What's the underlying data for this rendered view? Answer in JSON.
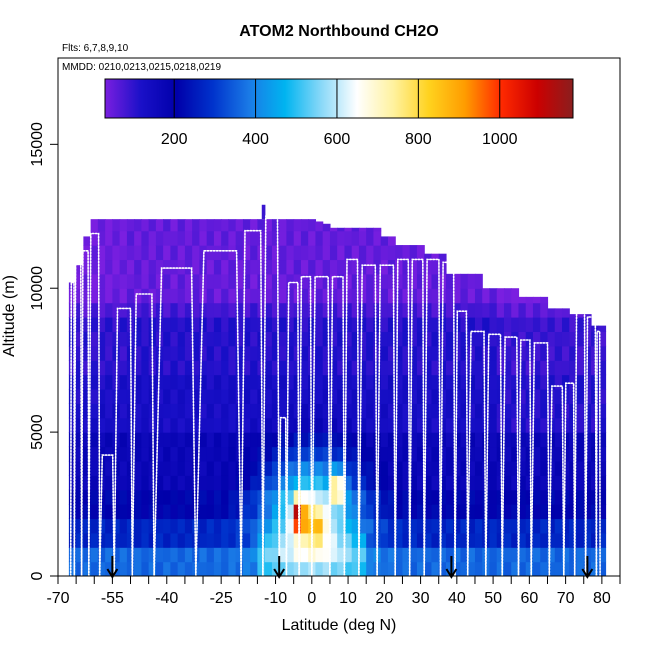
{
  "chart_data": {
    "type": "heatmap",
    "title": "ATOM2 Northbound CH2O",
    "subtitle_flights": "Flts: 6,7,8,9,10",
    "subtitle_dates": "MMDD: 0210,0213,0215,0218,0219",
    "xlabel": "Latitude (deg N)",
    "ylabel": "Altitude (m)",
    "xlim": [
      -70,
      85
    ],
    "ylim": [
      0,
      18000
    ],
    "x_ticks": [
      -70,
      -55,
      -40,
      -25,
      -10,
      0,
      10,
      20,
      30,
      40,
      50,
      60,
      70,
      80
    ],
    "x_minor_ticks": [
      -65,
      -60,
      -50,
      -45,
      -35,
      -30,
      -20,
      -15,
      -5,
      5,
      15,
      25,
      35,
      45,
      55,
      65,
      75,
      85
    ],
    "y_ticks": [
      0,
      5000,
      10000,
      15000
    ],
    "colorbar": {
      "min": 30,
      "max": 1180,
      "ticks": [
        200,
        400,
        600,
        800,
        1000
      ],
      "colors": [
        "#7a1fe0",
        "#1a10c8",
        "#0000aa",
        "#0033cc",
        "#1a7ae6",
        "#00b4f0",
        "#88d8f8",
        "#ffffff",
        "#fff2a0",
        "#ffd21e",
        "#ff9c00",
        "#ff2a00",
        "#cc0000",
        "#8b1e1e"
      ]
    },
    "arrows_lat": [
      -55,
      -9,
      38.5,
      76
    ],
    "flight_profiles": [
      {
        "lat0": -66.5,
        "lat1": -65.5,
        "top": 10200
      },
      {
        "lat0": -65.5,
        "lat1": -63.5,
        "top": 10900
      },
      {
        "lat0": -63.5,
        "lat1": -61.5,
        "top": 11300
      },
      {
        "lat0": -61.5,
        "lat1": -58.5,
        "top": 11900
      },
      {
        "lat0": -58.5,
        "lat1": -54.5,
        "top": 4200
      },
      {
        "lat0": -54.5,
        "lat1": -49.5,
        "top": 9300
      },
      {
        "lat0": -49.5,
        "lat1": -43.5,
        "top": 9800
      },
      {
        "lat0": -43.5,
        "lat1": -32.0,
        "top": 10700
      },
      {
        "lat0": -32.0,
        "lat1": -19.5,
        "top": 11300
      },
      {
        "lat0": -19.5,
        "lat1": -13.5,
        "top": 12000
      },
      {
        "lat0": -13.5,
        "lat1": -9.0,
        "top": 12500
      },
      {
        "lat0": -9.0,
        "lat1": -7.0,
        "top": 5500
      },
      {
        "lat0": -7.0,
        "lat1": -3.5,
        "top": 10200
      },
      {
        "lat0": -3.5,
        "lat1": 0.0,
        "top": 10400
      },
      {
        "lat0": 0.0,
        "lat1": 5.0,
        "top": 10400
      },
      {
        "lat0": 5.0,
        "lat1": 9.0,
        "top": 10400
      },
      {
        "lat0": 9.0,
        "lat1": 13.0,
        "top": 11000
      },
      {
        "lat0": 13.0,
        "lat1": 18.0,
        "top": 10800
      },
      {
        "lat0": 18.0,
        "lat1": 23.0,
        "top": 10800
      },
      {
        "lat0": 23.0,
        "lat1": 27.0,
        "top": 11000
      },
      {
        "lat0": 27.0,
        "lat1": 31.0,
        "top": 11000
      },
      {
        "lat0": 31.0,
        "lat1": 35.5,
        "top": 11000
      },
      {
        "lat0": 35.5,
        "lat1": 39.5,
        "top": 10900
      },
      {
        "lat0": 39.5,
        "lat1": 43.0,
        "top": 9200
      },
      {
        "lat0": 43.0,
        "lat1": 48.0,
        "top": 8500
      },
      {
        "lat0": 48.0,
        "lat1": 52.5,
        "top": 8400
      },
      {
        "lat0": 52.5,
        "lat1": 57.0,
        "top": 8300
      },
      {
        "lat0": 57.0,
        "lat1": 60.5,
        "top": 8200
      },
      {
        "lat0": 60.5,
        "lat1": 65.5,
        "top": 8100
      },
      {
        "lat0": 65.5,
        "lat1": 69.5,
        "top": 6600
      },
      {
        "lat0": 69.5,
        "lat1": 72.5,
        "top": 6700
      },
      {
        "lat0": 72.5,
        "lat1": 75.5,
        "top": 9300
      },
      {
        "lat0": 75.5,
        "lat1": 78.5,
        "top": 9000
      },
      {
        "lat0": 78.5,
        "lat1": 79.5,
        "top": 8500
      }
    ]
  }
}
